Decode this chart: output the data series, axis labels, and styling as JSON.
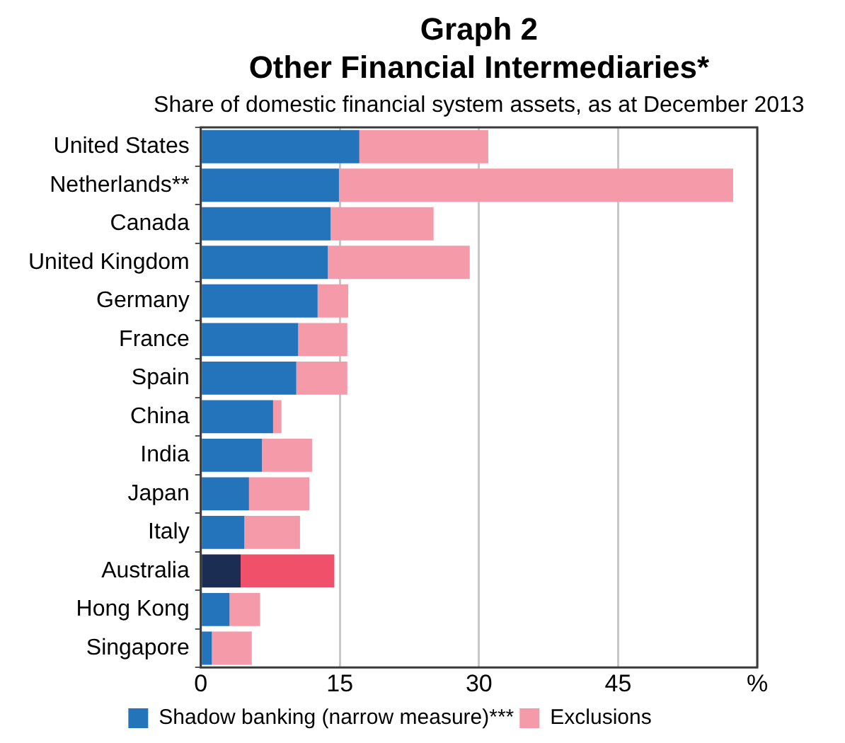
{
  "chart_data": {
    "type": "bar",
    "orientation": "horizontal",
    "stacked": true,
    "title": "Graph 2\nOther Financial Intermediaries*",
    "subtitle": "Share of domestic financial system assets, as at December 2013",
    "categories": [
      "United States",
      "Netherlands**",
      "Canada",
      "United Kingdom",
      "Germany",
      "France",
      "Spain",
      "China",
      "India",
      "Japan",
      "Italy",
      "Australia",
      "Hong Kong",
      "Singapore"
    ],
    "series": [
      {
        "name": "Shadow banking (narrow measure)***",
        "color": "#2474bc",
        "colors": [
          "#2474bc",
          "#2474bc",
          "#2474bc",
          "#2474bc",
          "#2474bc",
          "#2474bc",
          "#2474bc",
          "#2474bc",
          "#2474bc",
          "#2474bc",
          "#2474bc",
          "#1b2d53",
          "#2474bc",
          "#2474bc"
        ],
        "values": [
          17.1,
          14.9,
          14.0,
          13.7,
          12.6,
          10.5,
          10.3,
          7.8,
          6.6,
          5.2,
          4.7,
          4.3,
          3.1,
          1.2
        ]
      },
      {
        "name": "Exclusions",
        "color": "#f49aa8",
        "colors": [
          "#f49aa8",
          "#f49aa8",
          "#f49aa8",
          "#f49aa8",
          "#f49aa8",
          "#f49aa8",
          "#f49aa8",
          "#f49aa8",
          "#f49aa8",
          "#f49aa8",
          "#f49aa8",
          "#f0506a",
          "#f49aa8",
          "#f49aa8"
        ],
        "values": [
          13.9,
          42.5,
          11.1,
          15.3,
          3.3,
          5.3,
          5.5,
          0.9,
          5.4,
          6.5,
          6.0,
          10.1,
          3.3,
          4.3
        ]
      }
    ],
    "xlim": [
      0,
      60
    ],
    "xticks": [
      0,
      15,
      30,
      45,
      {
        "value": 60,
        "label": "%"
      }
    ],
    "grid": "x",
    "legend": "bottom"
  }
}
